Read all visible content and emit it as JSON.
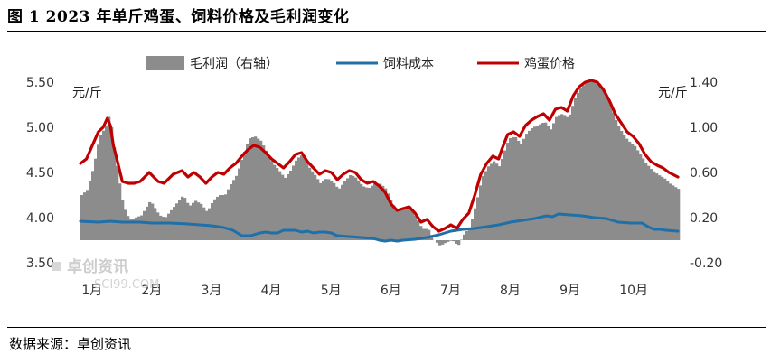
{
  "header": {
    "title": "图 1 2023 年单斤鸡蛋、饲料价格及毛利润变化"
  },
  "footer": {
    "source": "数据来源：卓创资讯"
  },
  "watermark": {
    "main": "卓创资讯",
    "sub": "SCI99.COM"
  },
  "chart_data": {
    "type": "line",
    "title": "",
    "xlabel": "",
    "left_axis": {
      "unit": "元/斤",
      "ticks": [
        "3.50",
        "4.00",
        "4.50",
        "5.00",
        "5.50"
      ],
      "range": [
        3.5,
        5.5
      ]
    },
    "right_axis": {
      "unit": "元/斤",
      "ticks": [
        "-0.20",
        "0.20",
        "0.60",
        "1.00",
        "1.40"
      ],
      "range": [
        -0.2,
        1.4
      ]
    },
    "months": [
      "1月",
      "2月",
      "3月",
      "4月",
      "5月",
      "6月",
      "7月",
      "8月",
      "9月",
      "10月"
    ],
    "legend": [
      "毛利润（右轴）",
      "饲料成本",
      "鸡蛋价格"
    ],
    "colors": {
      "profit": "#8c8c8c",
      "feed": "#1f6fa8",
      "egg": "#c00000"
    },
    "series": [
      {
        "name": "鸡蛋价格",
        "axis": "left",
        "points": [
          [
            0.0,
            4.6
          ],
          [
            0.1,
            4.65
          ],
          [
            0.2,
            4.8
          ],
          [
            0.3,
            4.95
          ],
          [
            0.38,
            5.0
          ],
          [
            0.45,
            5.1
          ],
          [
            0.5,
            5.02
          ],
          [
            0.55,
            4.8
          ],
          [
            0.62,
            4.62
          ],
          [
            0.7,
            4.4
          ],
          [
            0.8,
            4.38
          ],
          [
            0.9,
            4.38
          ],
          [
            1.0,
            4.4
          ],
          [
            1.15,
            4.5
          ],
          [
            1.3,
            4.4
          ],
          [
            1.4,
            4.38
          ],
          [
            1.55,
            4.48
          ],
          [
            1.7,
            4.52
          ],
          [
            1.8,
            4.45
          ],
          [
            1.9,
            4.5
          ],
          [
            2.0,
            4.45
          ],
          [
            2.1,
            4.38
          ],
          [
            2.2,
            4.45
          ],
          [
            2.3,
            4.5
          ],
          [
            2.4,
            4.48
          ],
          [
            2.5,
            4.55
          ],
          [
            2.6,
            4.6
          ],
          [
            2.7,
            4.68
          ],
          [
            2.8,
            4.75
          ],
          [
            2.9,
            4.8
          ],
          [
            3.0,
            4.78
          ],
          [
            3.1,
            4.72
          ],
          [
            3.2,
            4.65
          ],
          [
            3.3,
            4.6
          ],
          [
            3.4,
            4.55
          ],
          [
            3.5,
            4.62
          ],
          [
            3.6,
            4.7
          ],
          [
            3.7,
            4.72
          ],
          [
            3.8,
            4.62
          ],
          [
            3.9,
            4.55
          ],
          [
            4.0,
            4.48
          ],
          [
            4.1,
            4.52
          ],
          [
            4.2,
            4.5
          ],
          [
            4.3,
            4.42
          ],
          [
            4.4,
            4.48
          ],
          [
            4.5,
            4.52
          ],
          [
            4.6,
            4.5
          ],
          [
            4.7,
            4.42
          ],
          [
            4.8,
            4.38
          ],
          [
            4.9,
            4.4
          ],
          [
            5.0,
            4.35
          ],
          [
            5.1,
            4.28
          ],
          [
            5.2,
            4.15
          ],
          [
            5.3,
            4.08
          ],
          [
            5.4,
            4.1
          ],
          [
            5.5,
            4.12
          ],
          [
            5.6,
            4.05
          ],
          [
            5.7,
            3.95
          ],
          [
            5.8,
            3.98
          ],
          [
            5.9,
            3.9
          ],
          [
            6.0,
            3.85
          ],
          [
            6.1,
            3.88
          ],
          [
            6.2,
            3.92
          ],
          [
            6.3,
            3.88
          ],
          [
            6.4,
            3.98
          ],
          [
            6.5,
            4.05
          ],
          [
            6.6,
            4.25
          ],
          [
            6.7,
            4.48
          ],
          [
            6.8,
            4.6
          ],
          [
            6.9,
            4.68
          ],
          [
            7.0,
            4.65
          ],
          [
            7.05,
            4.75
          ],
          [
            7.15,
            4.92
          ],
          [
            7.25,
            4.95
          ],
          [
            7.35,
            4.9
          ],
          [
            7.45,
            5.02
          ],
          [
            7.55,
            5.08
          ],
          [
            7.65,
            5.12
          ],
          [
            7.75,
            5.15
          ],
          [
            7.85,
            5.08
          ],
          [
            7.95,
            5.2
          ],
          [
            8.05,
            5.22
          ],
          [
            8.15,
            5.18
          ],
          [
            8.25,
            5.35
          ],
          [
            8.35,
            5.45
          ],
          [
            8.45,
            5.5
          ],
          [
            8.55,
            5.52
          ],
          [
            8.65,
            5.5
          ],
          [
            8.75,
            5.42
          ],
          [
            8.85,
            5.3
          ],
          [
            8.95,
            5.15
          ],
          [
            9.05,
            5.05
          ],
          [
            9.15,
            4.95
          ],
          [
            9.25,
            4.9
          ],
          [
            9.35,
            4.82
          ],
          [
            9.45,
            4.7
          ],
          [
            9.55,
            4.62
          ],
          [
            9.65,
            4.58
          ],
          [
            9.75,
            4.55
          ],
          [
            9.85,
            4.5
          ],
          [
            10.0,
            4.45
          ]
        ]
      },
      {
        "name": "饲料成本",
        "axis": "left",
        "points": [
          [
            0.0,
            3.96
          ],
          [
            0.3,
            3.95
          ],
          [
            0.5,
            3.96
          ],
          [
            0.7,
            3.95
          ],
          [
            1.0,
            3.95
          ],
          [
            1.2,
            3.94
          ],
          [
            1.5,
            3.94
          ],
          [
            1.8,
            3.93
          ],
          [
            2.0,
            3.92
          ],
          [
            2.2,
            3.91
          ],
          [
            2.4,
            3.89
          ],
          [
            2.55,
            3.86
          ],
          [
            2.7,
            3.8
          ],
          [
            2.85,
            3.8
          ],
          [
            3.0,
            3.83
          ],
          [
            3.1,
            3.84
          ],
          [
            3.2,
            3.83
          ],
          [
            3.3,
            3.83
          ],
          [
            3.4,
            3.86
          ],
          [
            3.5,
            3.86
          ],
          [
            3.6,
            3.86
          ],
          [
            3.7,
            3.84
          ],
          [
            3.8,
            3.85
          ],
          [
            3.9,
            3.83
          ],
          [
            4.0,
            3.84
          ],
          [
            4.1,
            3.84
          ],
          [
            4.2,
            3.83
          ],
          [
            4.3,
            3.8
          ],
          [
            4.5,
            3.79
          ],
          [
            4.7,
            3.78
          ],
          [
            4.9,
            3.77
          ],
          [
            5.0,
            3.75
          ],
          [
            5.1,
            3.74
          ],
          [
            5.2,
            3.75
          ],
          [
            5.3,
            3.74
          ],
          [
            5.4,
            3.75
          ],
          [
            5.6,
            3.76
          ],
          [
            5.8,
            3.78
          ],
          [
            6.0,
            3.81
          ],
          [
            6.2,
            3.85
          ],
          [
            6.4,
            3.87
          ],
          [
            6.6,
            3.88
          ],
          [
            6.8,
            3.9
          ],
          [
            7.0,
            3.92
          ],
          [
            7.2,
            3.95
          ],
          [
            7.4,
            3.97
          ],
          [
            7.6,
            3.99
          ],
          [
            7.8,
            4.02
          ],
          [
            7.9,
            4.01
          ],
          [
            8.0,
            4.04
          ],
          [
            8.2,
            4.03
          ],
          [
            8.4,
            4.02
          ],
          [
            8.6,
            4.0
          ],
          [
            8.8,
            3.99
          ],
          [
            9.0,
            3.95
          ],
          [
            9.2,
            3.94
          ],
          [
            9.4,
            3.94
          ],
          [
            9.5,
            3.9
          ],
          [
            9.6,
            3.87
          ],
          [
            9.7,
            3.87
          ],
          [
            9.8,
            3.86
          ],
          [
            10.0,
            3.85
          ]
        ]
      },
      {
        "name": "毛利润（右轴）",
        "axis": "right",
        "points": [
          [
            0.0,
            0.4
          ],
          [
            0.1,
            0.45
          ],
          [
            0.2,
            0.65
          ],
          [
            0.3,
            0.92
          ],
          [
            0.4,
            1.0
          ],
          [
            0.45,
            1.1
          ],
          [
            0.5,
            1.0
          ],
          [
            0.55,
            0.8
          ],
          [
            0.62,
            0.55
          ],
          [
            0.7,
            0.3
          ],
          [
            0.8,
            0.18
          ],
          [
            0.9,
            0.2
          ],
          [
            1.0,
            0.22
          ],
          [
            1.15,
            0.35
          ],
          [
            1.3,
            0.22
          ],
          [
            1.4,
            0.2
          ],
          [
            1.55,
            0.3
          ],
          [
            1.7,
            0.4
          ],
          [
            1.8,
            0.3
          ],
          [
            1.9,
            0.35
          ],
          [
            2.0,
            0.32
          ],
          [
            2.1,
            0.25
          ],
          [
            2.2,
            0.35
          ],
          [
            2.3,
            0.4
          ],
          [
            2.4,
            0.4
          ],
          [
            2.5,
            0.5
          ],
          [
            2.6,
            0.58
          ],
          [
            2.7,
            0.75
          ],
          [
            2.8,
            0.9
          ],
          [
            2.9,
            0.92
          ],
          [
            3.0,
            0.88
          ],
          [
            3.1,
            0.78
          ],
          [
            3.2,
            0.68
          ],
          [
            3.3,
            0.62
          ],
          [
            3.4,
            0.55
          ],
          [
            3.5,
            0.62
          ],
          [
            3.6,
            0.72
          ],
          [
            3.7,
            0.76
          ],
          [
            3.8,
            0.65
          ],
          [
            3.9,
            0.58
          ],
          [
            4.0,
            0.5
          ],
          [
            4.1,
            0.55
          ],
          [
            4.2,
            0.52
          ],
          [
            4.3,
            0.45
          ],
          [
            4.4,
            0.52
          ],
          [
            4.5,
            0.58
          ],
          [
            4.6,
            0.55
          ],
          [
            4.7,
            0.48
          ],
          [
            4.8,
            0.46
          ],
          [
            4.9,
            0.5
          ],
          [
            5.0,
            0.5
          ],
          [
            5.1,
            0.45
          ],
          [
            5.2,
            0.32
          ],
          [
            5.3,
            0.26
          ],
          [
            5.4,
            0.28
          ],
          [
            5.5,
            0.3
          ],
          [
            5.6,
            0.2
          ],
          [
            5.7,
            0.1
          ],
          [
            5.8,
            0.1
          ],
          [
            5.9,
            0.0
          ],
          [
            6.0,
            -0.05
          ],
          [
            6.1,
            -0.02
          ],
          [
            6.2,
            0.0
          ],
          [
            6.3,
            -0.05
          ],
          [
            6.4,
            0.05
          ],
          [
            6.5,
            0.12
          ],
          [
            6.6,
            0.32
          ],
          [
            6.7,
            0.55
          ],
          [
            6.8,
            0.65
          ],
          [
            6.9,
            0.7
          ],
          [
            7.0,
            0.65
          ],
          [
            7.05,
            0.75
          ],
          [
            7.15,
            0.9
          ],
          [
            7.25,
            0.92
          ],
          [
            7.35,
            0.85
          ],
          [
            7.45,
            0.95
          ],
          [
            7.55,
            1.0
          ],
          [
            7.65,
            1.02
          ],
          [
            7.75,
            1.05
          ],
          [
            7.85,
            0.98
          ],
          [
            7.95,
            1.1
          ],
          [
            8.05,
            1.12
          ],
          [
            8.15,
            1.08
          ],
          [
            8.25,
            1.25
          ],
          [
            8.35,
            1.35
          ],
          [
            8.45,
            1.4
          ],
          [
            8.55,
            1.42
          ],
          [
            8.65,
            1.4
          ],
          [
            8.75,
            1.32
          ],
          [
            8.85,
            1.2
          ],
          [
            8.95,
            1.05
          ],
          [
            9.05,
            0.95
          ],
          [
            9.15,
            0.88
          ],
          [
            9.25,
            0.84
          ],
          [
            9.35,
            0.76
          ],
          [
            9.45,
            0.68
          ],
          [
            9.55,
            0.62
          ],
          [
            9.65,
            0.58
          ],
          [
            9.75,
            0.55
          ],
          [
            9.85,
            0.5
          ],
          [
            10.0,
            0.45
          ]
        ]
      }
    ]
  }
}
